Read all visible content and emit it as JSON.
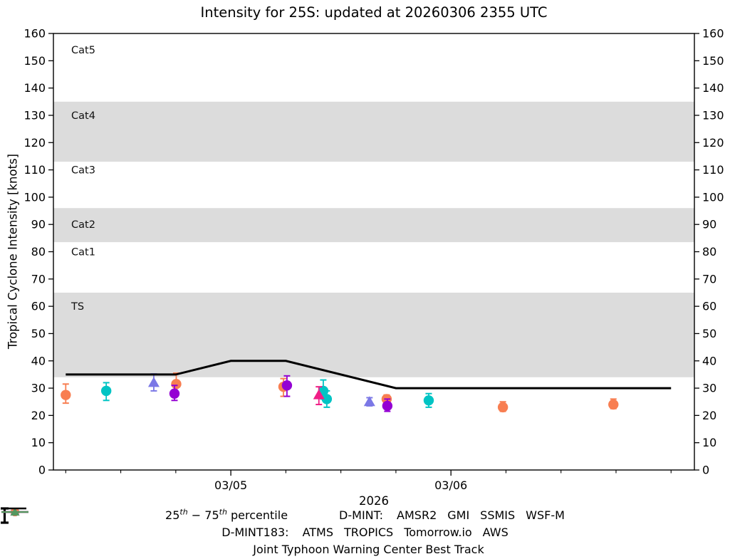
{
  "chart_data": {
    "type": "scatter",
    "title": "Intensity for 25S: updated at 20260306 2355 UTC",
    "ylabel": "Tropical Cyclone Intensity [knots]",
    "xlabel": "2026",
    "ylim": [
      0,
      160
    ],
    "yticks": [
      0,
      10,
      20,
      30,
      40,
      50,
      60,
      70,
      80,
      90,
      100,
      110,
      120,
      130,
      140,
      150,
      160
    ],
    "xlim_days": [
      -0.806,
      2.106
    ],
    "xticks": [
      {
        "d": 0,
        "label": "03/05"
      },
      {
        "d": 1,
        "label": "03/06"
      }
    ],
    "xminor_step": 0.25,
    "grid": false,
    "band_fill": "#dcdcdc",
    "bands": [
      {
        "name": "Cat5",
        "top": 160,
        "bottom": 135,
        "shaded": false,
        "label_y": 154
      },
      {
        "name": "Cat4",
        "top": 135,
        "bottom": 113,
        "shaded": true,
        "label_y": 130
      },
      {
        "name": "Cat3",
        "top": 113,
        "bottom": 96,
        "shaded": false,
        "label_y": 110
      },
      {
        "name": "Cat2",
        "top": 96,
        "bottom": 83.5,
        "shaded": true,
        "label_y": 90
      },
      {
        "name": "Cat1",
        "top": 83.5,
        "bottom": 65,
        "shaded": false,
        "label_y": 80
      },
      {
        "name": "TS",
        "top": 65,
        "bottom": 34,
        "shaded": true,
        "label_y": 60
      }
    ],
    "best_track": {
      "label": "Joint Typhoon Warning Center Best Track",
      "color": "#000000",
      "points": [
        [
          -0.75,
          35
        ],
        [
          -0.25,
          35
        ],
        [
          0,
          40
        ],
        [
          0.25,
          40
        ],
        [
          0.75,
          30
        ],
        [
          2.0,
          30
        ]
      ]
    },
    "series": [
      {
        "name": "ATMS",
        "group": "D-MINT183",
        "marker": "circle",
        "color": "#f87e51",
        "points": [
          {
            "x": -0.75,
            "y": 27.5,
            "lo": 24.5,
            "hi": 31.5
          },
          {
            "x": -0.248,
            "y": 31.5,
            "lo": 28.0,
            "hi": 35.5
          },
          {
            "x": 0.239,
            "y": 30.5,
            "lo": 27.0,
            "hi": 33.5
          },
          {
            "x": 0.708,
            "y": 26.0,
            "lo": 24.5,
            "hi": 27.5
          },
          {
            "x": 1.236,
            "y": 23.0,
            "lo": 21.5,
            "hi": 25.0
          },
          {
            "x": 1.738,
            "y": 24.0,
            "lo": 22.5,
            "hi": 26.0
          }
        ]
      },
      {
        "name": "SSMIS",
        "group": "D-MINT",
        "marker": "circle",
        "color": "#00c4c4",
        "points": [
          {
            "x": -0.566,
            "y": 29.0,
            "lo": 25.5,
            "hi": 32.0
          },
          {
            "x": 0.42,
            "y": 29.0,
            "lo": 26.0,
            "hi": 33.0
          },
          {
            "x": 0.436,
            "y": 26.0,
            "lo": 23.0,
            "hi": 29.0
          },
          {
            "x": 0.899,
            "y": 25.5,
            "lo": 23.0,
            "hi": 28.0
          }
        ]
      },
      {
        "name": "AMSR2",
        "group": "D-MINT",
        "marker": "circle",
        "color": "#9400d3",
        "points": [
          {
            "x": -0.256,
            "y": 28.0,
            "lo": 25.5,
            "hi": 31.0
          },
          {
            "x": 0.255,
            "y": 31.0,
            "lo": 27.0,
            "hi": 34.5
          },
          {
            "x": 0.711,
            "y": 23.5,
            "lo": 21.5,
            "hi": 26.0
          }
        ]
      },
      {
        "name": "GMI",
        "group": "D-MINT",
        "marker": "circle",
        "color": "#cc0000",
        "points": []
      },
      {
        "name": "TROPICS",
        "group": "D-MINT183",
        "marker": "triangle",
        "color": "#996f6f",
        "points": []
      },
      {
        "name": "Tomorrow.io",
        "group": "D-MINT183",
        "marker": "triangle",
        "color": "#7b78e6",
        "points": [
          {
            "x": -0.35,
            "y": 32.0,
            "lo": 29.0,
            "hi": 35.2
          },
          {
            "x": 0.63,
            "y": 25.0,
            "lo": 23.5,
            "hi": 26.5
          }
        ]
      },
      {
        "name": "AWS",
        "group": "D-MINT183",
        "marker": "triangle",
        "color": "#55975f",
        "points": []
      },
      {
        "name": "WSF-M",
        "group": "D-MINT",
        "marker": "triangle",
        "color": "#f01e86",
        "points": [
          {
            "x": 0.4,
            "y": 27.5,
            "lo": 24.0,
            "hi": 30.5
          }
        ]
      }
    ]
  },
  "legend": {
    "percentile": {
      "n1": "25",
      "sup1": "th",
      "mid": " − ",
      "n2": "75",
      "sup2": "th",
      "rest": " percentile"
    },
    "rows": [
      {
        "label": "D-MINT:",
        "items": [
          {
            "name": "AMSR2",
            "marker": "circle",
            "color": "#9400d3"
          },
          {
            "name": "GMI",
            "marker": "circle",
            "color": "#cc0000"
          },
          {
            "name": "SSMIS",
            "marker": "circle",
            "color": "#00c4c4"
          },
          {
            "name": "WSF-M",
            "marker": "triangle",
            "color": "#f01e86"
          }
        ]
      },
      {
        "label": "D-MINT183:",
        "items": [
          {
            "name": "ATMS",
            "marker": "circle",
            "color": "#f87e51"
          },
          {
            "name": "TROPICS",
            "marker": "triangle",
            "color": "#996f6f"
          },
          {
            "name": "Tomorrow.io",
            "marker": "triangle",
            "color": "#7b78e6"
          },
          {
            "name": "AWS",
            "marker": "triangle",
            "color": "#55975f"
          }
        ]
      }
    ],
    "best_track_label": "Joint Typhoon Warning Center Best Track"
  }
}
